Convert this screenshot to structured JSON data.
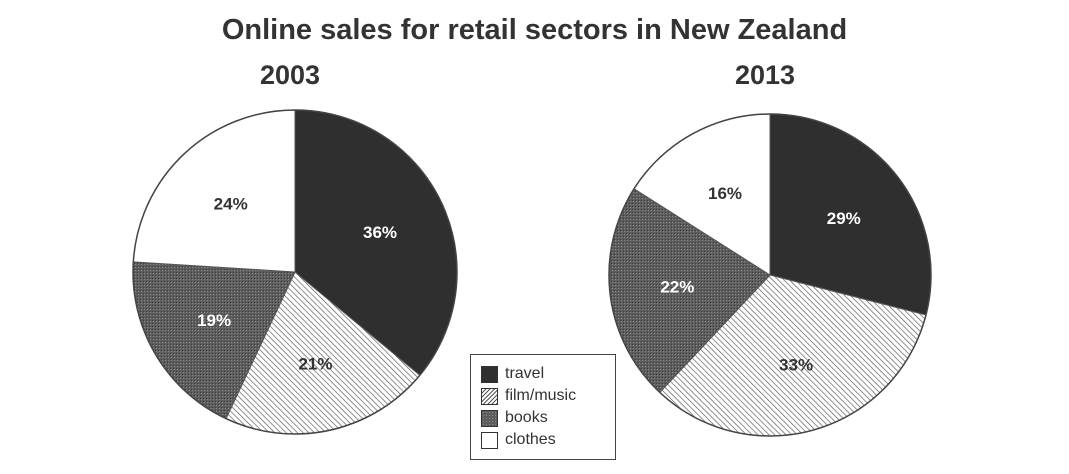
{
  "title": "Online sales for retail sectors in New Zealand",
  "colors": {
    "travel": "#2f2f2f",
    "film/music": "#e4e4e4",
    "books": "#5d5d5d",
    "clothes": "#ffffff"
  },
  "chart_data": [
    {
      "type": "pie",
      "title": "2003",
      "categories": [
        "travel",
        "film/music",
        "books",
        "clothes"
      ],
      "values": [
        36,
        21,
        19,
        24
      ],
      "labels": [
        "36%",
        "21%",
        "19%",
        "24%"
      ],
      "start_angle_deg": 0,
      "direction": "clockwise",
      "legend": "bottom-center"
    },
    {
      "type": "pie",
      "title": "2013",
      "categories": [
        "travel",
        "film/music",
        "books",
        "clothes"
      ],
      "values": [
        29,
        33,
        22,
        16
      ],
      "labels": [
        "29%",
        "33%",
        "22%",
        "16%"
      ],
      "start_angle_deg": 0,
      "direction": "clockwise",
      "legend": "bottom-center"
    }
  ],
  "legend": {
    "items": [
      {
        "key": "travel",
        "label": "travel"
      },
      {
        "key": "film/music",
        "label": "film/music"
      },
      {
        "key": "books",
        "label": "books"
      },
      {
        "key": "clothes",
        "label": "clothes"
      }
    ]
  }
}
